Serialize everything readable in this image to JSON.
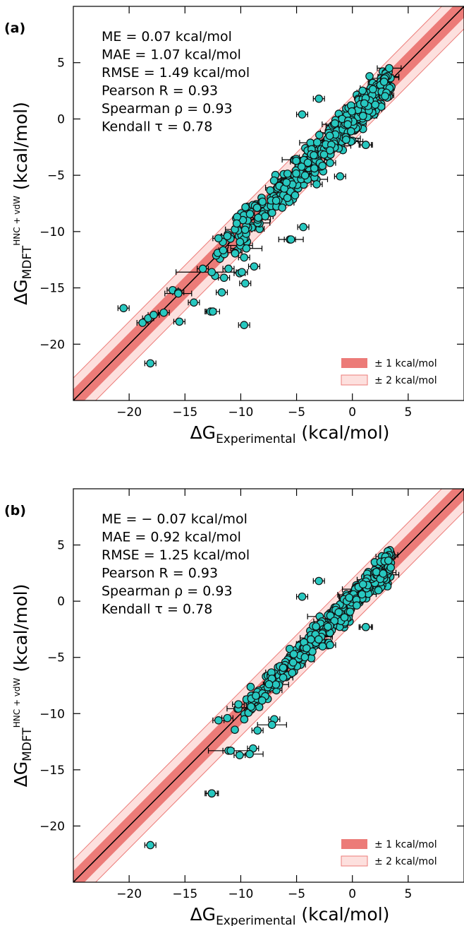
{
  "chart_data": [
    {
      "type": "scatter",
      "panel_label": "(a)",
      "xlabel": "ΔG_Experimental (kcal/mol)",
      "ylabel": "ΔG_MDFT^HNC+vdW (kcal/mol)",
      "xlabel_main": "ΔG",
      "xlabel_sub": "Experimental",
      "xlabel_unit": " (kcal/mol)",
      "ylabel_main": "ΔG",
      "ylabel_sub": "MDFT",
      "ylabel_sup": "HNC + vdW",
      "ylabel_unit": " (kcal/mol)",
      "xlim": [
        -25,
        10
      ],
      "ylim": [
        -25,
        10
      ],
      "xticks": [
        "−20",
        "−15",
        "−10",
        "−5",
        "0",
        "5"
      ],
      "yticks": [
        "−20",
        "−15",
        "−10",
        "−5",
        "0",
        "5"
      ],
      "stats": [
        "ME = 0.07 kcal/mol",
        "MAE = 1.07 kcal/mol",
        "RMSE = 1.49 kcal/mol",
        "Pearson R = 0.93",
        "Spearman ρ = 0.93",
        "Kendall τ = 0.78"
      ],
      "legend": [
        "± 1 kcal/mol",
        "± 2 kcal/mol"
      ],
      "legend_position": "lower-right",
      "outliers": [
        {
          "x": -20.5,
          "y": -16.8
        },
        {
          "x": -18.1,
          "y": -21.7
        },
        {
          "x": -18.8,
          "y": -18.1
        },
        {
          "x": -18.3,
          "y": -17.7
        },
        {
          "x": -17.8,
          "y": -17.4
        },
        {
          "x": -16.9,
          "y": -17.2
        },
        {
          "x": -15.5,
          "y": -18.0
        },
        {
          "x": -16.1,
          "y": -15.2
        },
        {
          "x": -15.6,
          "y": -15.4
        },
        {
          "x": -14.2,
          "y": -16.3
        },
        {
          "x": -12.7,
          "y": -17.1
        },
        {
          "x": -13.4,
          "y": -13.3
        },
        {
          "x": -11.7,
          "y": -15.4
        },
        {
          "x": -11.5,
          "y": -14.1
        },
        {
          "x": -11.1,
          "y": -13.3
        },
        {
          "x": -9.7,
          "y": -18.3
        },
        {
          "x": -9.6,
          "y": -14.6
        },
        {
          "x": -10.1,
          "y": -13.7
        },
        {
          "x": -8.8,
          "y": -13.1
        },
        {
          "x": -9.7,
          "y": -12.3
        },
        {
          "x": -9.9,
          "y": -13.6
        },
        {
          "x": -3.0,
          "y": 1.8
        },
        {
          "x": -4.5,
          "y": 0.4
        },
        {
          "x": 1.2,
          "y": -2.3
        },
        {
          "x": -2.0,
          "y": -3.9
        },
        {
          "x": -3.2,
          "y": -5.8
        },
        {
          "x": -1.1,
          "y": -5.1
        },
        {
          "x": -5.6,
          "y": -10.7
        },
        {
          "x": -4.4,
          "y": -9.6
        },
        {
          "x": -12.0,
          "y": -10.6
        },
        {
          "x": -11.2,
          "y": -10.4
        }
      ],
      "errorbars": [
        {
          "x": -12.6,
          "y": -13.6,
          "xerr": 3.2
        },
        {
          "x": -15.6,
          "y": -15.5,
          "xerr": 1.2
        },
        {
          "x": -9.5,
          "y": -11.5,
          "xerr": 1.4
        },
        {
          "x": -5.5,
          "y": -10.7,
          "xerr": 1.1
        },
        {
          "x": -12.5,
          "y": -17.1,
          "xerr": 0.6
        },
        {
          "x": 1.2,
          "y": -2.3,
          "xerr": 0.6
        }
      ],
      "cluster": {
        "x_range": [
          -12.5,
          3.5
        ],
        "slope": 1.0,
        "spread": 1.2,
        "count": 520,
        "seed": 7
      }
    },
    {
      "type": "scatter",
      "panel_label": "(b)",
      "xlabel": "ΔG_Experimental (kcal/mol)",
      "ylabel": "ΔG_MDFT^HNC+vdW (kcal/mol)",
      "xlabel_main": "ΔG",
      "xlabel_sub": "Experimental",
      "xlabel_unit": " (kcal/mol)",
      "ylabel_main": "ΔG",
      "ylabel_sub": "MDFT",
      "ylabel_sup": "HNC + vdW",
      "ylabel_unit": " (kcal/mol)",
      "xlim": [
        -25,
        10
      ],
      "ylim": [
        -25,
        10
      ],
      "xticks": [
        "−20",
        "−15",
        "−10",
        "−5",
        "0",
        "5"
      ],
      "yticks": [
        "−20",
        "−15",
        "−10",
        "−5",
        "0",
        "5"
      ],
      "stats": [
        "ME = − 0.07 kcal/mol",
        "MAE = 0.92 kcal/mol",
        "RMSE = 1.25 kcal/mol",
        "Pearson R = 0.93",
        "Spearman ρ = 0.93",
        "Kendall τ = 0.78"
      ],
      "legend": [
        "± 1 kcal/mol",
        "± 2 kcal/mol"
      ],
      "legend_position": "lower-right",
      "outliers": [
        {
          "x": -18.1,
          "y": -21.7
        },
        {
          "x": -12.6,
          "y": -17.1
        },
        {
          "x": -11.1,
          "y": -13.3
        },
        {
          "x": -10.1,
          "y": -13.7
        },
        {
          "x": -8.9,
          "y": -13.1
        },
        {
          "x": -12.0,
          "y": -10.6
        },
        {
          "x": -11.2,
          "y": -10.4
        },
        {
          "x": -3.0,
          "y": 1.8
        },
        {
          "x": -4.5,
          "y": 0.4
        },
        {
          "x": 1.2,
          "y": -2.3
        },
        {
          "x": -2.0,
          "y": -3.9
        },
        {
          "x": -7.0,
          "y": -10.5
        },
        {
          "x": -8.5,
          "y": -11.5
        }
      ],
      "errorbars": [
        {
          "x": -12.6,
          "y": -17.1,
          "xerr": 0.6
        },
        {
          "x": -10.9,
          "y": -13.3,
          "xerr": 2.0
        },
        {
          "x": -9.2,
          "y": -13.6,
          "xerr": 1.2
        },
        {
          "x": -7.2,
          "y": -11.0,
          "xerr": 1.3
        },
        {
          "x": 1.2,
          "y": -2.3,
          "xerr": 0.6
        }
      ],
      "cluster": {
        "x_range": [
          -11.0,
          3.5
        ],
        "slope": 1.0,
        "spread": 0.9,
        "count": 480,
        "seed": 13
      }
    }
  ]
}
